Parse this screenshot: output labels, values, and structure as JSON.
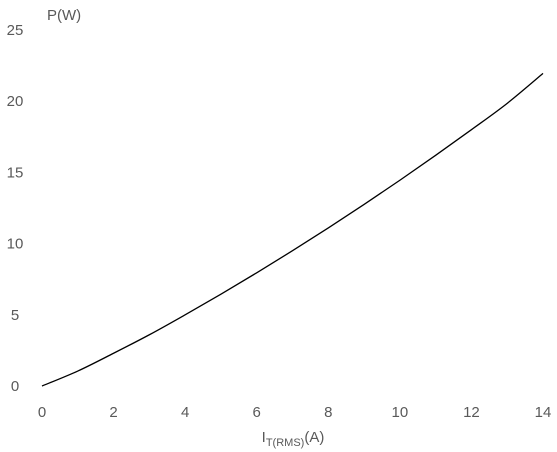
{
  "chart_data": {
    "type": "line",
    "title": "",
    "xlabel": {
      "main": "I",
      "subscript": "T(RMS)",
      "unit": "(A)"
    },
    "ylabel": "P(W)",
    "xlim": [
      0,
      14
    ],
    "ylim": [
      0,
      25
    ],
    "x_ticks": [
      "0",
      "2",
      "4",
      "6",
      "8",
      "10",
      "12",
      "14"
    ],
    "y_ticks": [
      "0",
      "5",
      "10",
      "15",
      "20",
      "25"
    ],
    "grid": false,
    "legend": "none",
    "line_color": "#000000",
    "series": [
      {
        "x": [
          0,
          1,
          2,
          3,
          4,
          5,
          6,
          7,
          8,
          9,
          10,
          11,
          12,
          13,
          14
        ],
        "y": [
          0,
          1.05,
          2.3,
          3.6,
          5.0,
          6.45,
          7.95,
          9.5,
          11.1,
          12.75,
          14.45,
          16.2,
          18.0,
          19.85,
          21.95
        ]
      }
    ]
  }
}
